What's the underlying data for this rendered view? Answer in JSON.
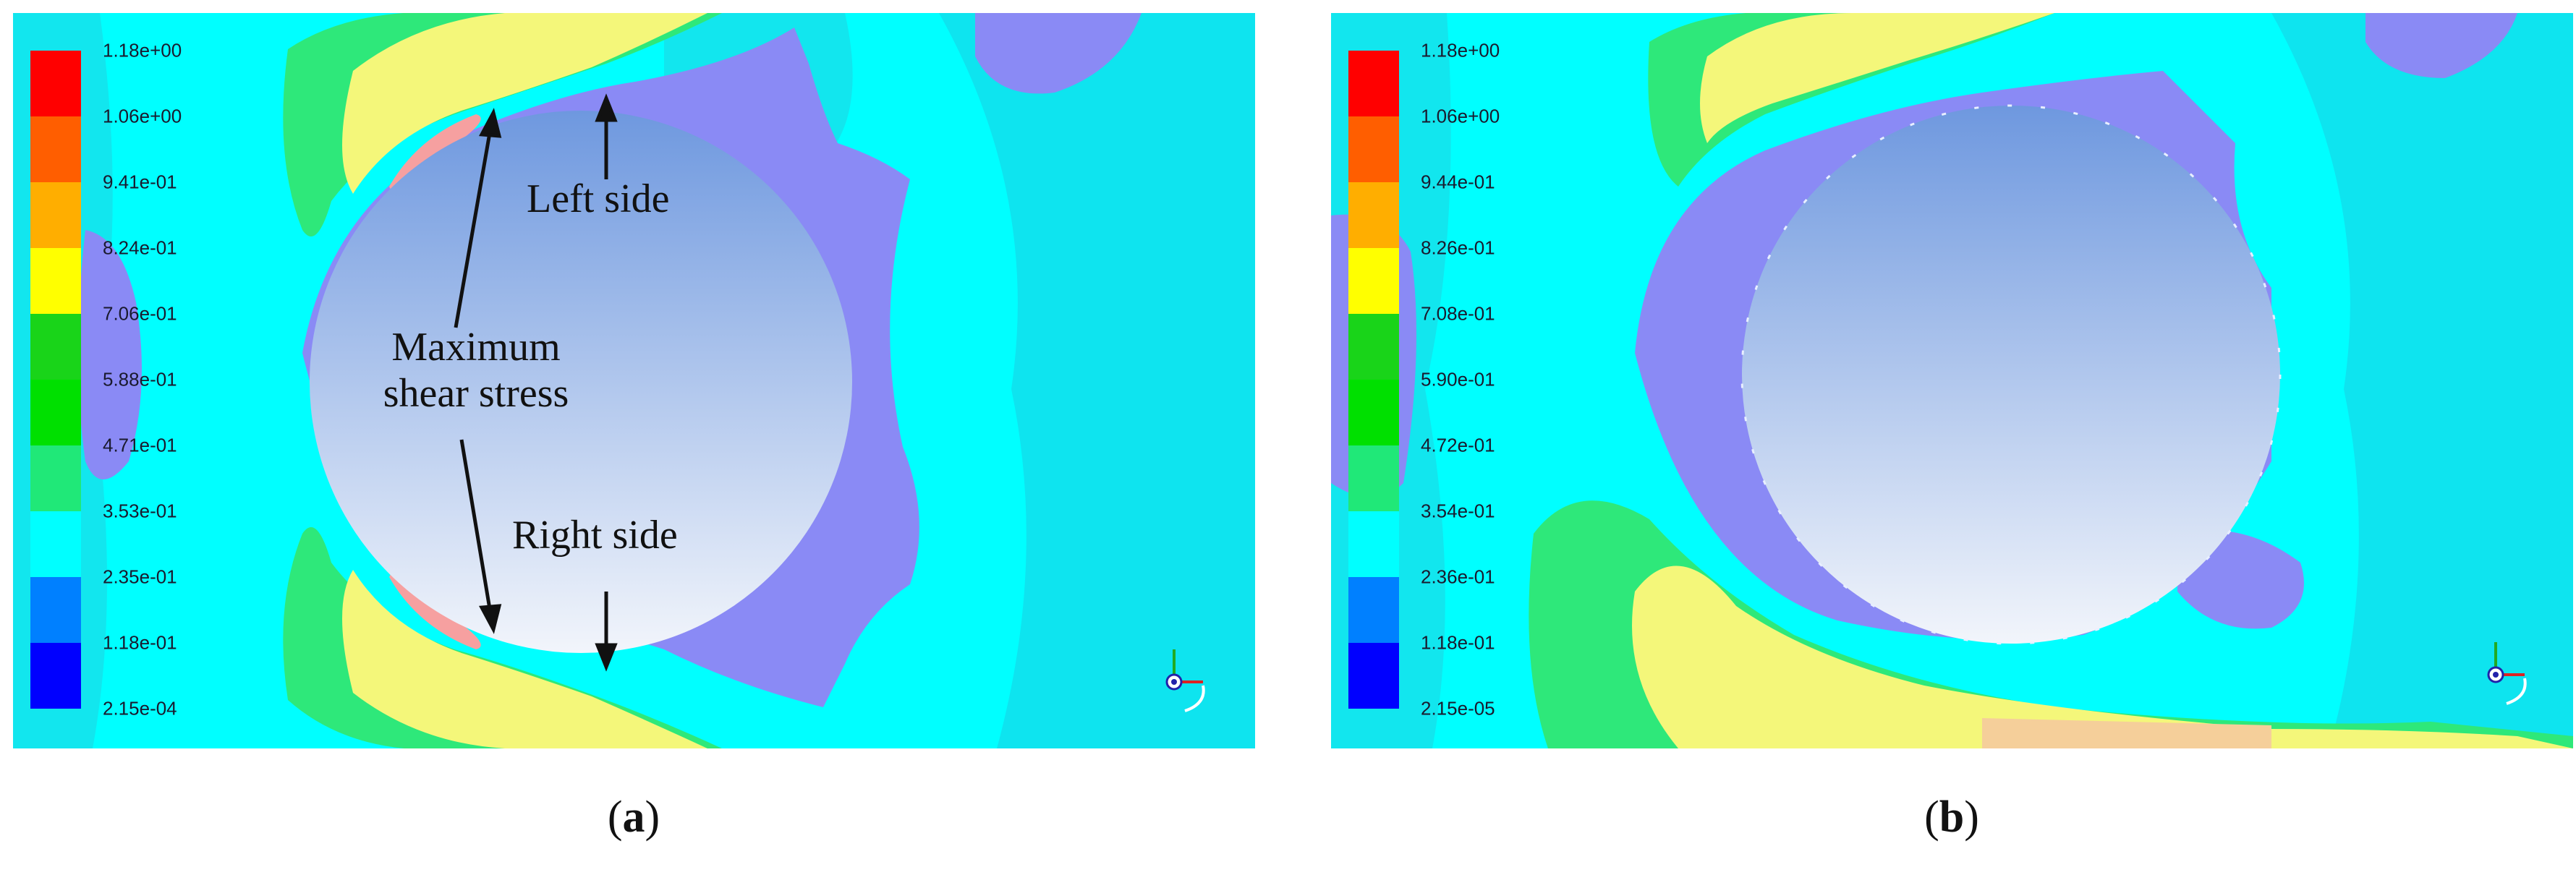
{
  "colors": {
    "background_field": "#00ffff",
    "light_blue_band": "#00e8f0",
    "low_stress_purple": "#8a8af5",
    "high_stress_yellow": "#f4f77a",
    "green_band": "#2ee87a",
    "peak_red": "#e8383c",
    "cylinder_top": "#6e98df",
    "cylinder_bottom": "#f2f5fb",
    "legend_swatches": [
      "#ff0000",
      "#ff5e00",
      "#ffae00",
      "#ffff00",
      "#19d419",
      "#00e000",
      "#20e878",
      "#00ffff",
      "#0080ff",
      "#0000ff"
    ]
  },
  "panels": [
    {
      "id": "a",
      "legend_ticks": [
        "1.18e+00",
        "1.06e+00",
        "9.41e-01",
        "8.24e-01",
        "7.06e-01",
        "5.88e-01",
        "4.71e-01",
        "3.53e-01",
        "2.35e-01",
        "1.18e-01",
        "2.15e-04"
      ],
      "annotations": {
        "left_side": "Left side",
        "max_shear_line1": "Maximum",
        "max_shear_line2": "shear stress",
        "right_side": "Right side"
      },
      "caption_letter": "a"
    },
    {
      "id": "b",
      "legend_ticks": [
        "1.18e+00",
        "1.06e+00",
        "9.44e-01",
        "8.26e-01",
        "7.08e-01",
        "5.90e-01",
        "4.72e-01",
        "3.54e-01",
        "2.36e-01",
        "1.18e-01",
        "2.15e-05"
      ],
      "caption_letter": "b"
    }
  ],
  "axis_icon": "coordinate-triad-icon"
}
